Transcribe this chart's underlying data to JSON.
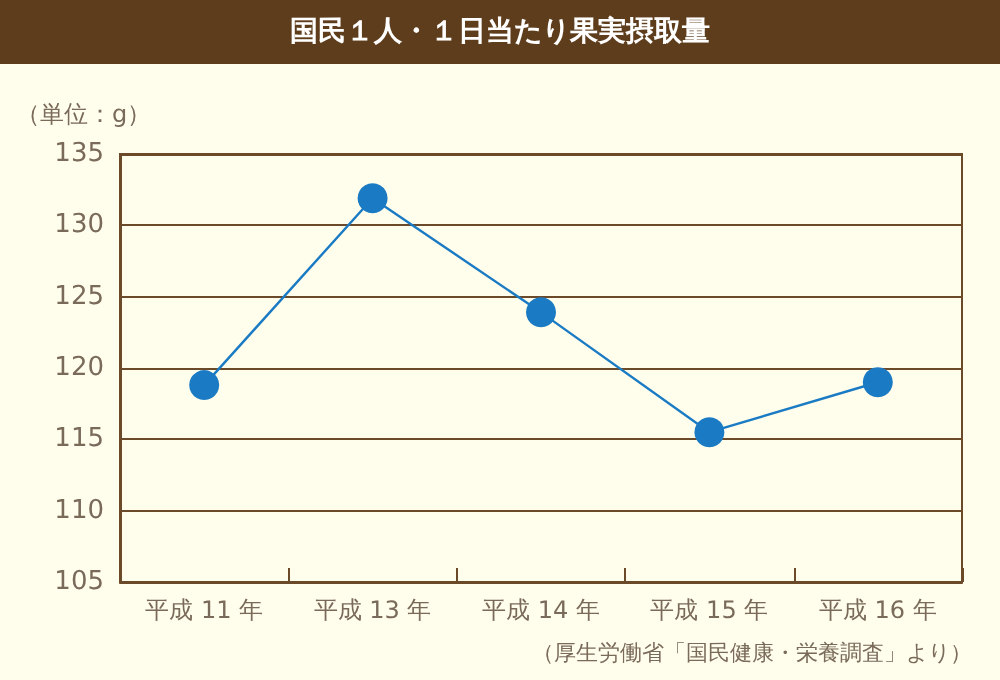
{
  "chart_data": {
    "type": "line",
    "title": "国民１人・１日当たり果実摂取量",
    "ylabel": "（単位：g）",
    "categories": [
      "平成 11 年",
      "平成 13 年",
      "平成 14 年",
      "平成 15 年",
      "平成 16 年"
    ],
    "series": [
      {
        "color": "#1a7bc4",
        "values": [
          118.8,
          131.9,
          123.9,
          115.5,
          119.0
        ]
      }
    ],
    "ylim": [
      105,
      135
    ],
    "yticks": [
      105,
      110,
      115,
      120,
      125,
      130,
      135
    ],
    "grid": "y",
    "marker": "circle",
    "line_style": "solid",
    "annotations": [
      "（厚生労働省「国民健康・栄養調査」より）"
    ]
  }
}
